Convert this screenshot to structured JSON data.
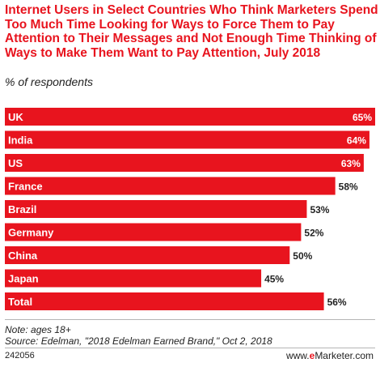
{
  "chart_data": {
    "type": "bar",
    "orientation": "horizontal",
    "title": "Internet Users in Select Countries Who Think Marketers Spend Too Much Time Looking for Ways to Force Them to Pay Attention to Their Messages and Not Enough Time Thinking of Ways to Make Them Want to Pay Attention, July 2018",
    "subtitle": "% of respondents",
    "categories": [
      "UK",
      "India",
      "US",
      "France",
      "Brazil",
      "Germany",
      "China",
      "Japan",
      "Total"
    ],
    "values": [
      65,
      64,
      63,
      58,
      53,
      52,
      50,
      45,
      56
    ],
    "value_labels": [
      "65%",
      "64%",
      "63%",
      "58%",
      "53%",
      "52%",
      "50%",
      "45%",
      "56%"
    ],
    "xlim": [
      0,
      65
    ],
    "bar_color": "#e8141e",
    "grid": false,
    "legend": "none"
  },
  "footer": {
    "note": "Note: ages 18+",
    "source": "Source: Edelman, \"2018 Edelman Earned Brand,\" Oct 2, 2018",
    "chart_id": "242056",
    "brand_prefix": "www.",
    "brand_e": "e",
    "brand_suffix": "Marketer.com"
  }
}
